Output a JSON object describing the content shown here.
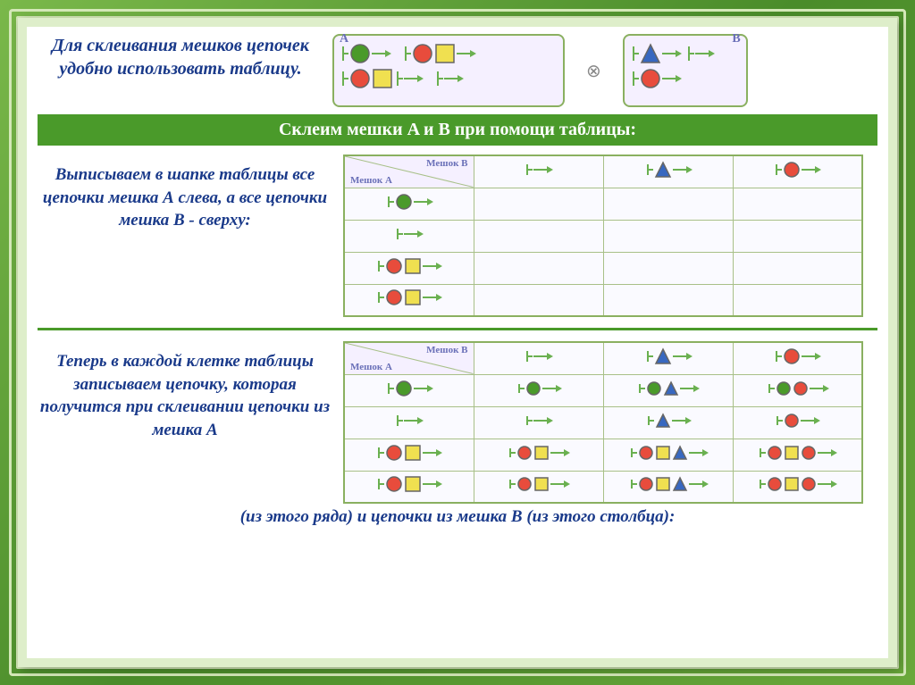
{
  "intro": "Для склеивания мешков цепочек удобно использовать таблицу.",
  "title_bar": "Склеим мешки A и B при помощи таблицы:",
  "step1_text": "Выписываем в шапке таблицы все цепочки мешка А слева, а все цепочки мешка В - сверху:",
  "step2_text": "Теперь в каждой клетке таблицы записываем цепочку, которая получится при склеивании цепочки из мешка А",
  "bottom_text": "(из этого ряда) и цепочки из мешка В (из этого столбца):",
  "bag_a_label": "А",
  "bag_b_label": "В",
  "table_header_a": "Мешок А",
  "table_header_b": "Мешок В",
  "otimes": "⊗",
  "colors": {
    "green": "#4a9a2a",
    "red": "#e84c3c",
    "yellow": "#f0e050",
    "blue": "#3868c0",
    "arrow": "#6ab050",
    "shape_border": "#666"
  },
  "bag_a_chains": [
    [
      "start",
      "circle-green",
      "arrow"
    ],
    [
      "start",
      "circle-red",
      "square-yellow",
      "arrow"
    ],
    [
      "start",
      "circle-red",
      "square-yellow",
      "start",
      "arrow"
    ],
    [
      "start",
      "arrow"
    ]
  ],
  "bag_b_chains": [
    [
      "start",
      "triangle-blue",
      "arrow"
    ],
    [
      "start",
      "circle-red",
      "arrow"
    ],
    [
      "start",
      "arrow"
    ]
  ],
  "table1": {
    "col_headers": [
      [
        "start",
        "arrow"
      ],
      [
        "start",
        "triangle-blue",
        "arrow"
      ],
      [
        "start",
        "circle-red",
        "arrow"
      ]
    ],
    "row_headers": [
      [
        "start",
        "circle-green",
        "arrow"
      ],
      [
        "start",
        "arrow"
      ],
      [
        "start",
        "circle-red",
        "square-yellow",
        "arrow"
      ],
      [
        "start",
        "circle-red",
        "square-yellow",
        "arrow"
      ]
    ]
  },
  "table2": {
    "col_headers": [
      [
        "start",
        "arrow"
      ],
      [
        "start",
        "triangle-blue",
        "arrow"
      ],
      [
        "start",
        "circle-red",
        "arrow"
      ]
    ],
    "rows": [
      {
        "header": [
          "start",
          "circle-green",
          "arrow"
        ],
        "cells": [
          [
            "start",
            "circle-green",
            "arrow"
          ],
          [
            "start",
            "circle-green",
            "triangle-blue",
            "arrow"
          ],
          [
            "start",
            "circle-green",
            "circle-red",
            "arrow"
          ]
        ]
      },
      {
        "header": [
          "start",
          "arrow"
        ],
        "cells": [
          [
            "start",
            "arrow"
          ],
          [
            "start",
            "triangle-blue",
            "arrow"
          ],
          [
            "start",
            "circle-red",
            "arrow"
          ]
        ]
      },
      {
        "header": [
          "start",
          "circle-red",
          "square-yellow",
          "arrow"
        ],
        "cells": [
          [
            "start",
            "circle-red",
            "square-yellow",
            "arrow"
          ],
          [
            "start",
            "circle-red",
            "square-yellow",
            "triangle-blue",
            "arrow"
          ],
          [
            "start",
            "circle-red",
            "square-yellow",
            "circle-red",
            "arrow"
          ]
        ]
      },
      {
        "header": [
          "start",
          "circle-red",
          "square-yellow",
          "arrow"
        ],
        "cells": [
          [
            "start",
            "circle-red",
            "square-yellow",
            "arrow"
          ],
          [
            "start",
            "circle-red",
            "square-yellow",
            "triangle-blue",
            "arrow"
          ],
          [
            "start",
            "circle-red",
            "square-yellow",
            "circle-red",
            "arrow"
          ]
        ]
      }
    ]
  }
}
